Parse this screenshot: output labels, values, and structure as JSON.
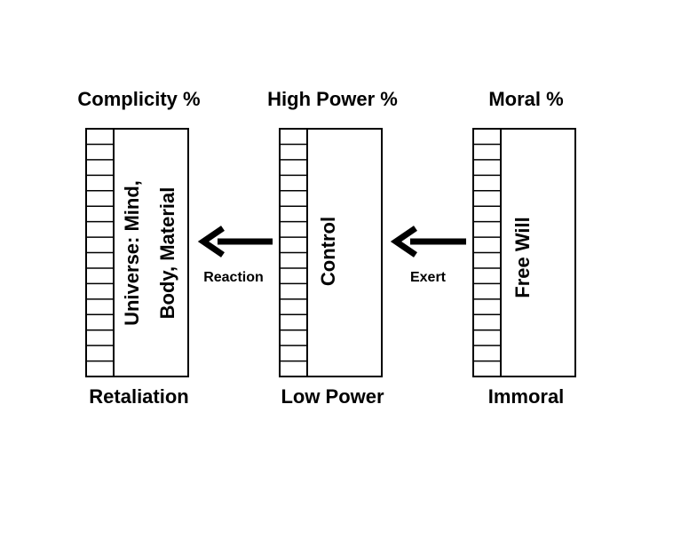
{
  "columns": [
    {
      "top": "Complicity %",
      "bottom": "Retaliation",
      "inner": [
        "Universe: Mind,",
        "Body, Material"
      ]
    },
    {
      "top": "High Power %",
      "bottom": "Low Power",
      "inner": [
        "Control"
      ]
    },
    {
      "top": "Moral %",
      "bottom": "Immoral",
      "inner": [
        "Free Will"
      ]
    }
  ],
  "arrows": [
    {
      "label": "Reaction"
    },
    {
      "label": "Exert"
    }
  ]
}
